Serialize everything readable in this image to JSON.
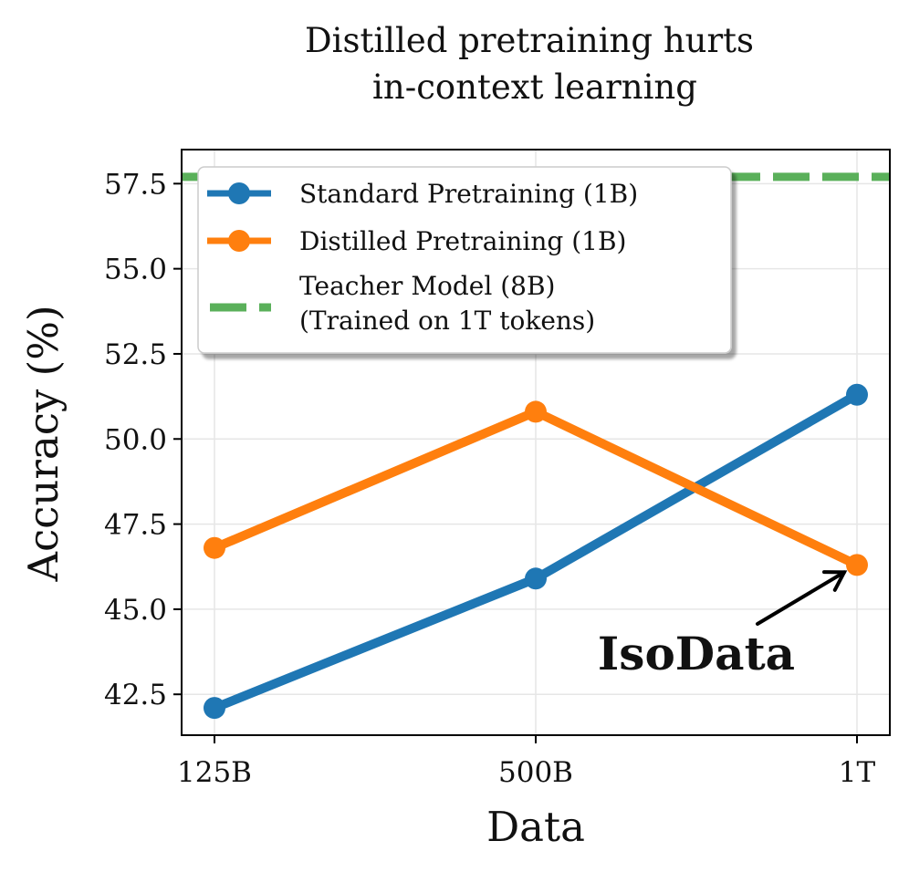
{
  "chart_data": {
    "type": "line",
    "title_lines": [
      "Distilled pretraining hurts",
      "in-context learning"
    ],
    "xlabel": "Data",
    "ylabel": "Accuracy (%)",
    "categories": [
      "125B",
      "500B",
      "1T"
    ],
    "yticks": [
      "42.5",
      "45.0",
      "47.5",
      "50.0",
      "52.5",
      "55.0",
      "57.5"
    ],
    "ytick_values": [
      42.5,
      45.0,
      47.5,
      50.0,
      52.5,
      55.0,
      57.5
    ],
    "ylim": [
      41.3,
      58.5
    ],
    "grid": true,
    "legend_position": "top-left",
    "series": [
      {
        "name": "Standard Pretraining (1B)",
        "values": [
          42.1,
          45.9,
          51.3
        ],
        "color": "#1f77b4",
        "style": "solid-marker"
      },
      {
        "name": "Distilled Pretraining (1B)",
        "values": [
          46.8,
          50.8,
          46.3
        ],
        "color": "#ff7f0e",
        "style": "solid-marker"
      }
    ],
    "reference_line": {
      "name_lines": [
        "Teacher Model (8B)",
        "(Trained on 1T tokens)"
      ],
      "value": 57.7,
      "color": "#5ab05a",
      "style": "dashed"
    },
    "annotation": {
      "text": "IsoData",
      "points_to_category": "1T",
      "points_to_value": 46.3
    }
  }
}
